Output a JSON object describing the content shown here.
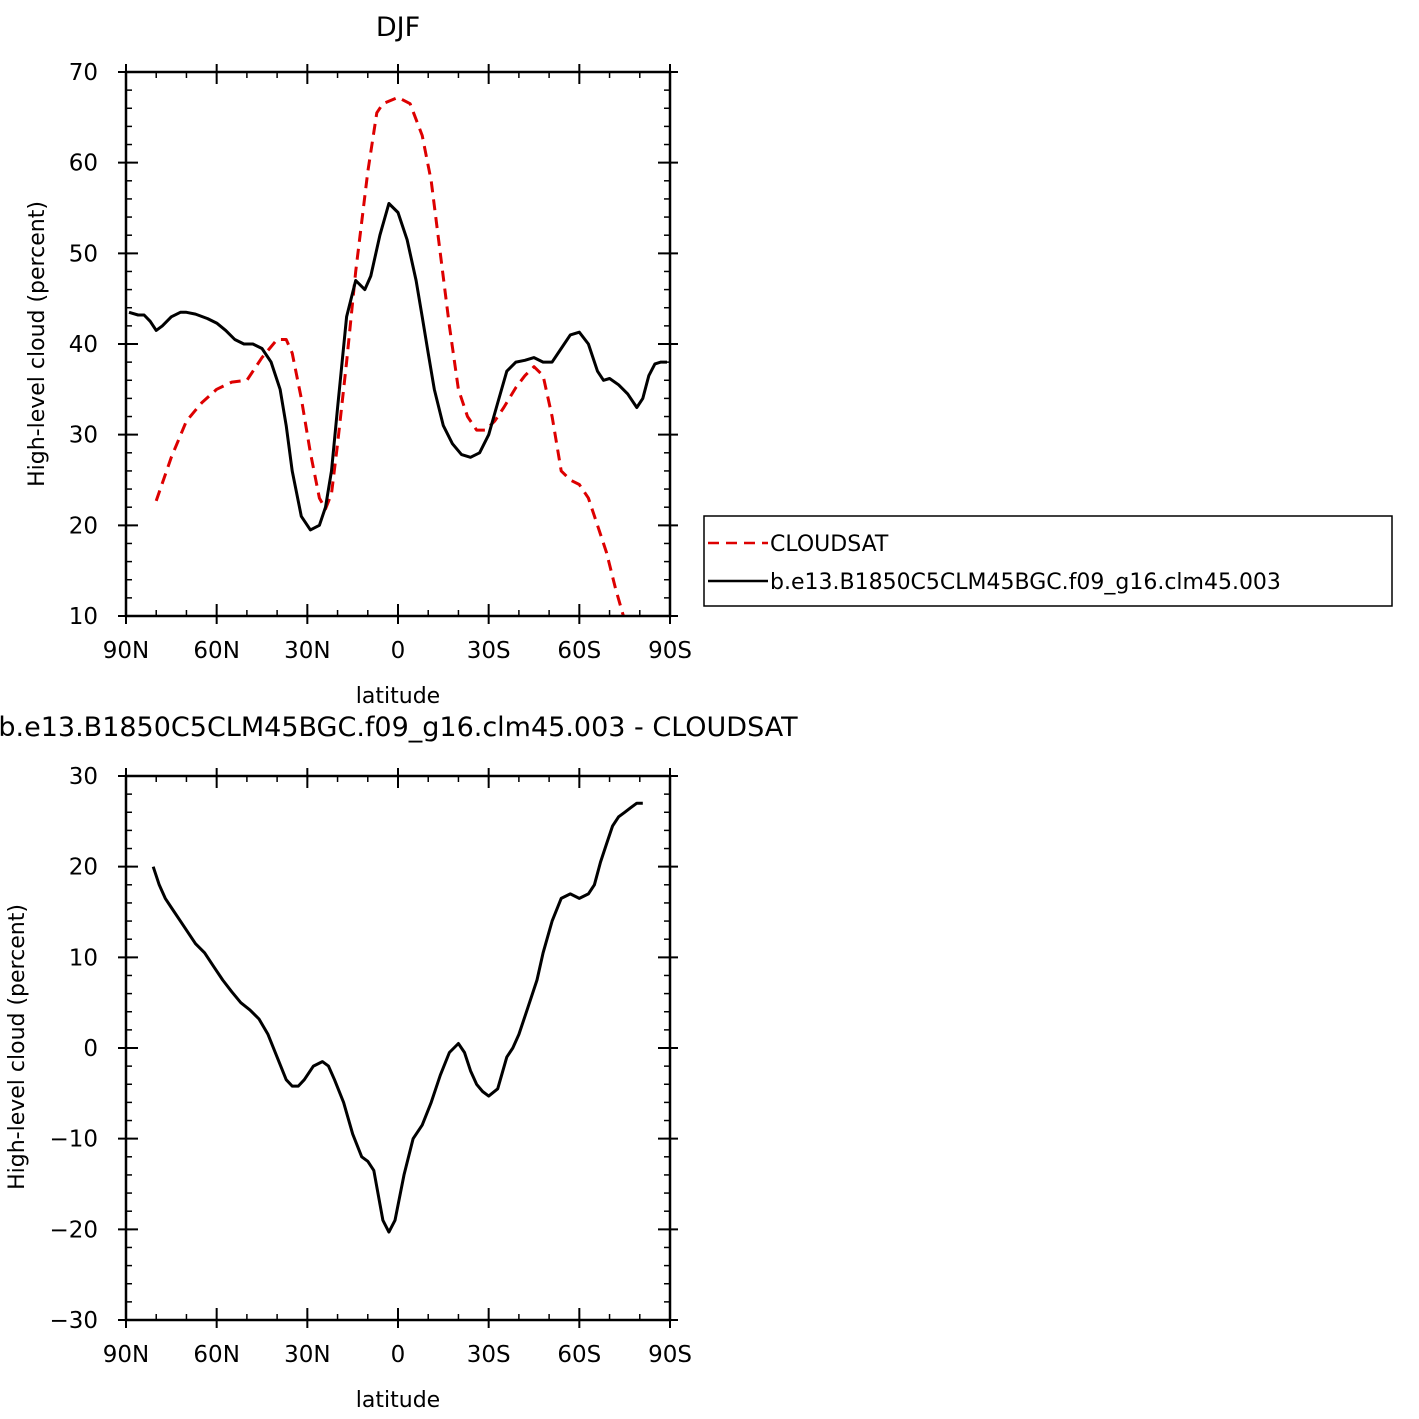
{
  "chart_data": [
    {
      "type": "line",
      "title": "DJF",
      "xlabel": "latitude",
      "ylabel": "High-level cloud (percent)",
      "xlim": [
        90,
        -90
      ],
      "ylim": [
        10,
        70
      ],
      "xticks": [
        90,
        60,
        30,
        0,
        -30,
        -60,
        -90
      ],
      "xtick_labels": [
        "90N",
        "60N",
        "30N",
        "0",
        "30S",
        "60S",
        "90S"
      ],
      "yticks": [
        10,
        20,
        30,
        40,
        50,
        60,
        70
      ],
      "ytick_labels": [
        "10",
        "20",
        "30",
        "40",
        "50",
        "60",
        "70"
      ],
      "legend": "right",
      "series": [
        {
          "name": "CLOUDSAT",
          "color": "#dd0000",
          "dash": "dashed",
          "x": [
            80,
            75,
            70,
            65,
            60,
            55,
            50,
            45,
            40,
            37,
            35,
            32,
            29,
            26,
            24,
            22,
            20,
            17,
            14,
            10,
            7,
            5,
            0,
            -4,
            -8,
            -11,
            -14,
            -17,
            -20,
            -23,
            -26,
            -29,
            -32,
            -35,
            -39,
            -42,
            -45,
            -48,
            -51,
            -54,
            -57,
            -60,
            -63,
            -66,
            -69,
            -72,
            -75,
            -78,
            -81
          ],
          "y": [
            22.7,
            27.5,
            31.5,
            33.5,
            35.0,
            35.8,
            36.0,
            38.5,
            40.5,
            40.5,
            39.0,
            34.0,
            28.0,
            23.0,
            21.8,
            23.5,
            29.0,
            38.0,
            48.0,
            59.0,
            65.5,
            66.5,
            67.2,
            66.5,
            63.0,
            58.0,
            50.0,
            42.0,
            35.0,
            32.0,
            30.5,
            30.5,
            31.5,
            33.0,
            35.2,
            36.5,
            37.5,
            36.5,
            32.0,
            26.0,
            25.0,
            24.5,
            23.0,
            20.0,
            17.0,
            13.0,
            9.5,
            6.0,
            3.0
          ]
        },
        {
          "name": "b.e13.B1850C5CLM45BGC.f09_g16.clm45.003",
          "color": "#000000",
          "dash": "solid",
          "x": [
            89,
            86,
            84,
            82,
            80,
            78,
            75,
            72,
            70,
            67,
            63,
            60,
            57,
            54,
            51,
            48,
            45,
            42,
            39,
            37,
            35,
            32,
            29,
            26,
            24,
            22,
            20,
            17,
            14,
            11,
            9,
            6,
            3,
            0,
            -3,
            -6,
            -8,
            -10,
            -12,
            -15,
            -18,
            -21,
            -24,
            -27,
            -30,
            -33,
            -36,
            -39,
            -42,
            -45,
            -48,
            -51,
            -54,
            -57,
            -60,
            -63,
            -66,
            -68,
            -70,
            -73,
            -76,
            -79,
            -81,
            -83,
            -85,
            -87,
            -89
          ],
          "y": [
            43.5,
            43.2,
            43.2,
            42.5,
            41.5,
            42.0,
            43.0,
            43.5,
            43.5,
            43.3,
            42.8,
            42.3,
            41.5,
            40.5,
            40.0,
            40.0,
            39.5,
            38.0,
            35.0,
            31.0,
            26.0,
            21.0,
            19.5,
            20.0,
            22.0,
            26.0,
            33.0,
            43.0,
            47.0,
            46.0,
            47.5,
            52.0,
            55.5,
            54.5,
            51.5,
            47.0,
            43.0,
            39.0,
            35.0,
            31.0,
            29.0,
            27.8,
            27.5,
            28.0,
            30.0,
            33.5,
            37.0,
            38.0,
            38.2,
            38.5,
            38.0,
            38.0,
            39.5,
            41.0,
            41.3,
            40.0,
            37.0,
            36.0,
            36.2,
            35.5,
            34.5,
            33.0,
            34.0,
            36.5,
            37.8,
            38.0,
            38.0
          ]
        }
      ]
    },
    {
      "type": "line",
      "title": "b.e13.B1850C5CLM45BGC.f09_g16.clm45.003 - CLOUDSAT",
      "xlabel": "latitude",
      "ylabel": "High-level cloud (percent)",
      "xlim": [
        90,
        -90
      ],
      "ylim": [
        -30,
        30
      ],
      "xticks": [
        90,
        60,
        30,
        0,
        -30,
        -60,
        -90
      ],
      "xtick_labels": [
        "90N",
        "60N",
        "30N",
        "0",
        "30S",
        "60S",
        "90S"
      ],
      "yticks": [
        -30,
        -20,
        -10,
        0,
        10,
        20,
        30
      ],
      "ytick_labels": [
        "−30",
        "−20",
        "−10",
        "0",
        "10",
        "20",
        "30"
      ],
      "series": [
        {
          "color": "#000000",
          "dash": "solid",
          "x": [
            81,
            79,
            77,
            75,
            72,
            69,
            67,
            64,
            61,
            58,
            55,
            52,
            49,
            46,
            43,
            40,
            37,
            35,
            33,
            31,
            28,
            25,
            23,
            21,
            18,
            15,
            12,
            10,
            8,
            5,
            3,
            1,
            -2,
            -5,
            -8,
            -11,
            -14,
            -17,
            -20,
            -22,
            -24,
            -26,
            -28,
            -30,
            -33,
            -36,
            -38,
            -40,
            -43,
            -46,
            -48,
            -51,
            -54,
            -57,
            -60,
            -63,
            -65,
            -67,
            -69,
            -71,
            -73,
            -75,
            -77,
            -79,
            -81
          ],
          "y": [
            20.0,
            18.0,
            16.5,
            15.5,
            14.0,
            12.5,
            11.5,
            10.5,
            9.0,
            7.5,
            6.2,
            5.0,
            4.2,
            3.2,
            1.5,
            -1.0,
            -3.5,
            -4.2,
            -4.2,
            -3.5,
            -2.0,
            -1.5,
            -2.0,
            -3.5,
            -6.0,
            -9.5,
            -12.0,
            -12.5,
            -13.5,
            -19.0,
            -20.3,
            -19.0,
            -14.0,
            -10.0,
            -8.5,
            -6.0,
            -3.0,
            -0.5,
            0.5,
            -0.5,
            -2.5,
            -4.0,
            -4.8,
            -5.3,
            -4.5,
            -1.0,
            0.0,
            1.5,
            4.5,
            7.5,
            10.5,
            14.0,
            16.5,
            17.0,
            16.5,
            17.0,
            18.0,
            20.5,
            22.5,
            24.5,
            25.5,
            26.0,
            26.5,
            27.0,
            27.0
          ]
        }
      ]
    }
  ]
}
